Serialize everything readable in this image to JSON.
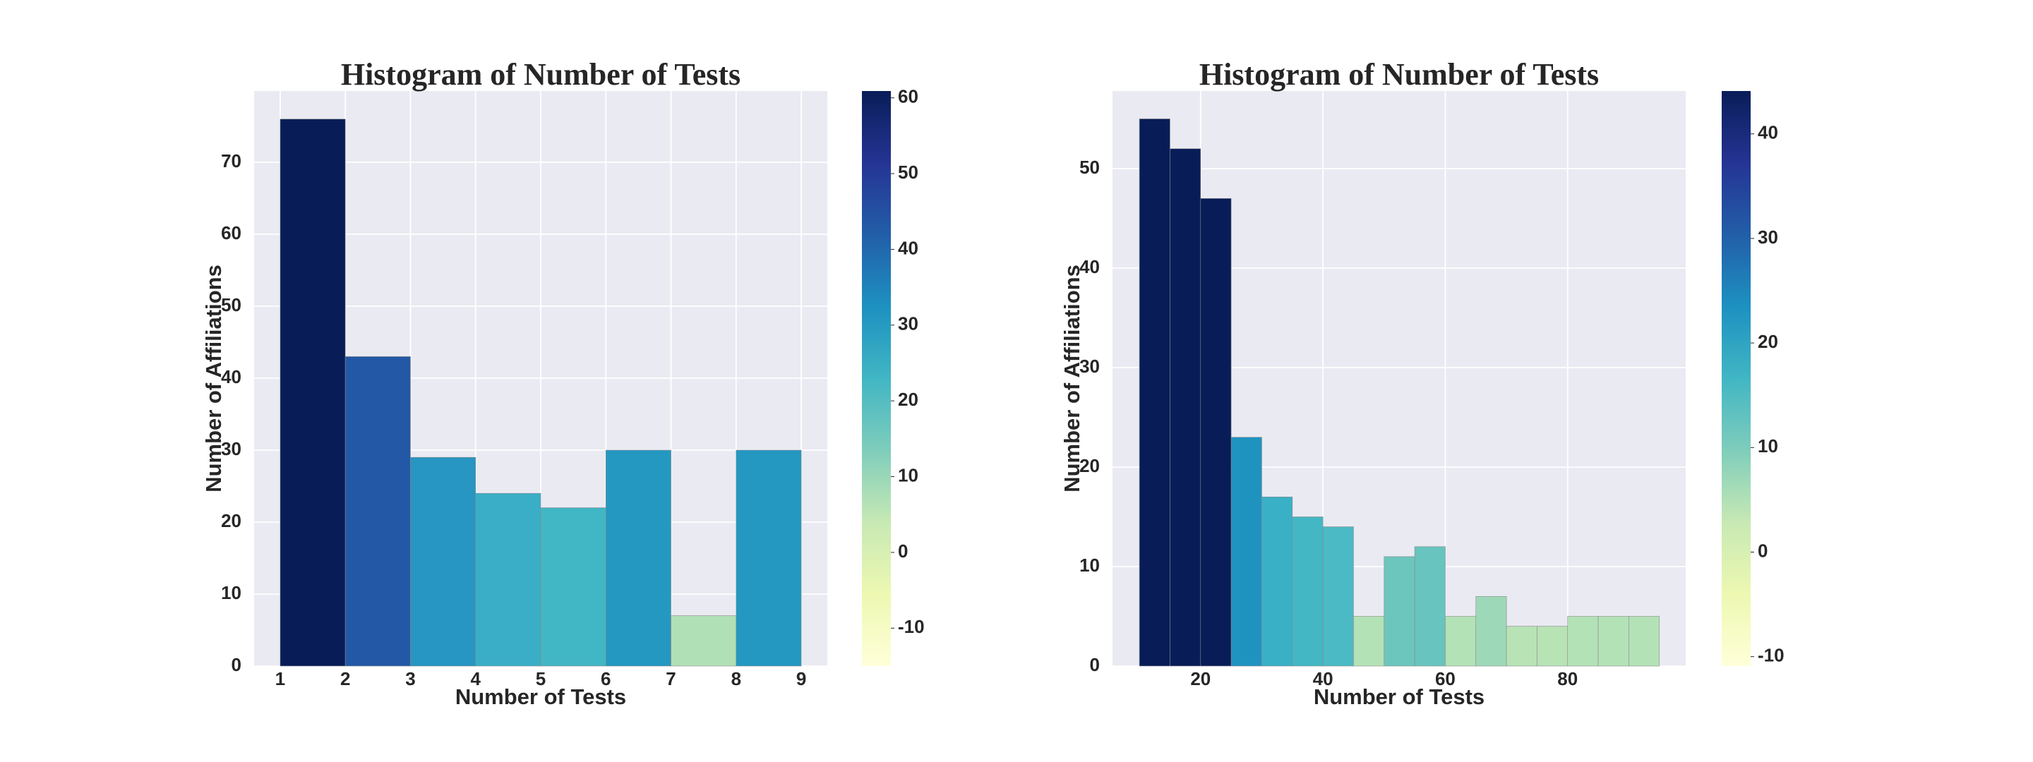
{
  "chart_data": [
    {
      "type": "histogram",
      "title": "Histogram of Number of Tests",
      "xlabel": "Number of Tests",
      "ylabel": "Number of Affiliations",
      "bins": [
        1,
        2,
        3,
        4,
        5,
        6,
        7,
        8,
        9
      ],
      "values": [
        76,
        43,
        29,
        24,
        22,
        30,
        7,
        30
      ],
      "colors": [
        "#081d58",
        "#2258a5",
        "#2796c2",
        "#3aaec6",
        "#41b6c4",
        "#2498c1",
        "#b0e0b6",
        "#2498c1"
      ],
      "xlim": [
        0.6,
        9.4
      ],
      "ylim": [
        0,
        79.9
      ],
      "xticks": [
        1,
        2,
        3,
        4,
        5,
        6,
        7,
        8,
        9
      ],
      "yticks": [
        0,
        10,
        20,
        30,
        40,
        50,
        60,
        70
      ],
      "grid": true,
      "colorbar": {
        "lim": [
          -15,
          60.9
        ],
        "ticks": [
          -10,
          0,
          10,
          20,
          30,
          40,
          50,
          60
        ],
        "colors": [
          "#ffffd9",
          "#edf8b1",
          "#c7e9b4",
          "#7fcdbb",
          "#41b6c4",
          "#1d91c0",
          "#225ea8",
          "#253494",
          "#081d58"
        ]
      }
    },
    {
      "type": "histogram",
      "title": "Histogram of Number of Tests",
      "xlabel": "Number of Tests",
      "ylabel": "Number of Affiliations",
      "bins": [
        10,
        15,
        20,
        25,
        30,
        35,
        40,
        45,
        50,
        55,
        60,
        65,
        70,
        75,
        80,
        85,
        90,
        95
      ],
      "values": [
        55,
        52,
        47,
        23,
        17,
        15,
        14,
        5,
        11,
        12,
        5,
        7,
        4,
        4,
        5,
        5,
        5
      ],
      "colors": [
        "#081d58",
        "#081d58",
        "#081d58",
        "#1f93c0",
        "#3ab0c6",
        "#43b7c4",
        "#4bbac4",
        "#b3e2b6",
        "#6cc6bd",
        "#67c4be",
        "#b3e2b6",
        "#9dd9b8",
        "#b8e3b5",
        "#b8e3b5",
        "#b3e2b6",
        "#b3e2b6",
        "#b3e2b6"
      ],
      "xlim": [
        5.6,
        99.3
      ],
      "ylim": [
        0,
        57.8
      ],
      "xticks": [
        20,
        40,
        60,
        80
      ],
      "yticks": [
        0,
        10,
        20,
        30,
        40,
        50
      ],
      "grid": true,
      "colorbar": {
        "lim": [
          -10.9,
          44.1
        ],
        "ticks": [
          -10,
          0,
          10,
          20,
          30,
          40
        ],
        "colors": [
          "#ffffd9",
          "#edf8b1",
          "#c7e9b4",
          "#7fcdbb",
          "#41b6c4",
          "#1d91c0",
          "#225ea8",
          "#253494",
          "#081d58"
        ]
      }
    }
  ]
}
